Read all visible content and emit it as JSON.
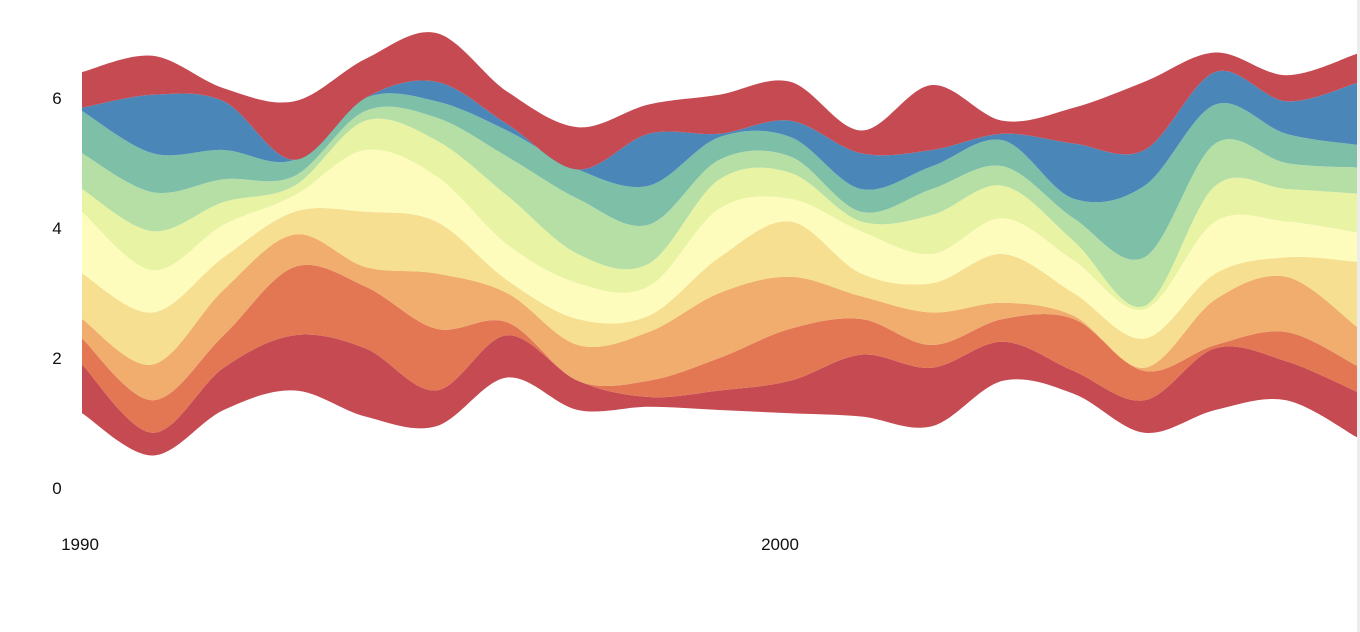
{
  "chart_data": {
    "type": "area",
    "stacked": true,
    "baseline": "wiggle",
    "curve": "smooth",
    "x": [
      1990,
      1991,
      1992,
      1993,
      1994,
      1995,
      1996,
      1997,
      1998,
      1999,
      2000,
      2001,
      2002,
      2003,
      2004,
      2005,
      2006,
      2007,
      2008
    ],
    "xticks": [
      1990,
      2000
    ],
    "xtick_labels": [
      "1990",
      "2000"
    ],
    "yticks": [
      0,
      2,
      4,
      6
    ],
    "ytick_labels": [
      "0",
      "2",
      "4",
      "6"
    ],
    "ylim": [
      0,
      7
    ],
    "xlim": [
      1990,
      2008
    ],
    "grid": false,
    "legend": "none",
    "title": "",
    "xlabel": "",
    "ylabel": "",
    "bottom": [
      1.15,
      0.5,
      1.2,
      1.5,
      1.1,
      0.95,
      1.7,
      1.2,
      1.25,
      1.2,
      1.15,
      1.1,
      0.95,
      1.65,
      1.45,
      0.85,
      1.2,
      1.35,
      0.78
    ],
    "series": [
      {
        "color": "#c64a52",
        "values": [
          0.75,
          0.35,
          0.65,
          0.85,
          1.05,
          0.55,
          0.65,
          0.45,
          0.15,
          0.3,
          0.5,
          0.95,
          0.9,
          0.6,
          0.35,
          0.5,
          0.95,
          0.6,
          0.7
        ]
      },
      {
        "color": "#e37653",
        "values": [
          0.4,
          0.5,
          0.5,
          1.05,
          0.95,
          0.95,
          0.2,
          0.0,
          0.25,
          0.5,
          0.8,
          0.55,
          0.35,
          0.35,
          0.8,
          0.45,
          0.05,
          0.45,
          0.4
        ]
      },
      {
        "color": "#f0ad6e",
        "values": [
          0.3,
          0.55,
          0.7,
          0.5,
          0.3,
          0.85,
          0.45,
          0.55,
          0.75,
          1.0,
          0.8,
          0.35,
          0.5,
          0.25,
          0.05,
          0.05,
          0.7,
          0.85,
          0.6
        ]
      },
      {
        "color": "#f7df91",
        "values": [
          0.7,
          0.8,
          0.5,
          0.35,
          0.85,
          0.8,
          0.2,
          0.4,
          0.25,
          0.55,
          0.85,
          0.35,
          0.45,
          0.75,
          0.35,
          0.45,
          0.4,
          0.3,
          1.0
        ]
      },
      {
        "color": "#fefcbd",
        "values": [
          0.95,
          0.65,
          0.5,
          0.25,
          0.95,
          0.7,
          0.55,
          0.55,
          0.45,
          0.75,
          0.35,
          0.65,
          0.45,
          0.55,
          0.5,
          0.45,
          0.8,
          0.55,
          0.45
        ]
      },
      {
        "color": "#e8f4a4",
        "values": [
          0.35,
          0.6,
          0.35,
          0.15,
          0.45,
          0.55,
          0.75,
          0.45,
          0.35,
          0.45,
          0.4,
          0.15,
          0.6,
          0.5,
          0.3,
          0.05,
          0.55,
          0.5,
          0.6
        ]
      },
      {
        "color": "#b6dfa6",
        "values": [
          0.55,
          0.6,
          0.35,
          0.15,
          0.15,
          0.35,
          0.6,
          0.85,
          0.6,
          0.3,
          0.25,
          0.15,
          0.4,
          0.3,
          0.35,
          0.75,
          0.65,
          0.4,
          0.4
        ]
      },
      {
        "color": "#7ebfa8",
        "values": [
          0.65,
          0.6,
          0.45,
          0.25,
          0.2,
          0.25,
          0.4,
          0.45,
          0.6,
          0.35,
          0.3,
          0.35,
          0.35,
          0.4,
          0.3,
          1.1,
          0.6,
          0.45,
          0.35
        ]
      },
      {
        "color": "#4a86b8",
        "values": [
          0.05,
          0.9,
          0.75,
          0.0,
          0.0,
          0.3,
          0.1,
          0.0,
          0.8,
          0.05,
          0.25,
          0.55,
          0.25,
          0.1,
          0.85,
          0.55,
          0.5,
          0.5,
          0.95
        ]
      },
      {
        "color": "#c64a52",
        "values": [
          0.55,
          0.6,
          0.2,
          0.9,
          0.6,
          0.75,
          0.5,
          0.65,
          0.45,
          0.6,
          0.6,
          0.35,
          1.0,
          0.2,
          0.55,
          1.05,
          0.3,
          0.4,
          0.45
        ]
      }
    ]
  }
}
